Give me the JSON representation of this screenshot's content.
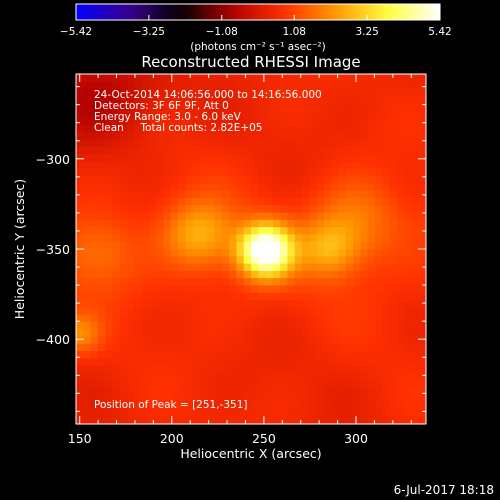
{
  "colorbar": {
    "ticks": [
      "−5.42",
      "−3.25",
      "−1.08",
      "1.08",
      "3.25",
      "5.42"
    ],
    "tick_values": [
      -5.42,
      -3.25,
      -1.08,
      1.08,
      3.25,
      5.42
    ],
    "range": [
      -5.42,
      5.42
    ],
    "unit_label": "(photons cm⁻² s⁻¹ asec⁻²)",
    "colormap": [
      "#0000ff",
      "#3a0090",
      "#000000",
      "#b00000",
      "#ff3000",
      "#ff9900",
      "#ffff40",
      "#ffffff"
    ]
  },
  "chart_data": {
    "type": "heatmap",
    "title": "Reconstructed RHESSI Image",
    "xlabel": "Heliocentric X (arcsec)",
    "ylabel": "Heliocentric Y (arcsec)",
    "xlim": [
      148,
      338
    ],
    "ylim": [
      -447,
      -253
    ],
    "xticks": [
      150,
      200,
      250,
      300
    ],
    "yticks": [
      -300,
      -350,
      -400
    ],
    "annotations": [
      "24-Oct-2014 14:06:56.000 to 14:16:56.000",
      "Detectors: 3F 6F 9F, Att 0",
      "Energy Range: 3.0 - 6.0 keV",
      "Clean     Total counts: 2.82E+05"
    ],
    "peak_label": "Position of Peak = [251,-351]",
    "peak": [
      251,
      -351
    ],
    "sources": [
      {
        "x": 251,
        "y": -351,
        "amp": 5.42,
        "sigma": 10
      },
      {
        "x": 215,
        "y": -342,
        "amp": 1.9,
        "sigma": 13
      },
      {
        "x": 285,
        "y": -350,
        "amp": 1.6,
        "sigma": 11
      },
      {
        "x": 300,
        "y": -335,
        "amp": 1.2,
        "sigma": 16
      },
      {
        "x": 160,
        "y": -352,
        "amp": 0.9,
        "sigma": 14
      },
      {
        "x": 150,
        "y": -397,
        "amp": 1.4,
        "sigma": 8
      }
    ]
  },
  "footer": {
    "date": "6-Jul-2017 18:18"
  }
}
